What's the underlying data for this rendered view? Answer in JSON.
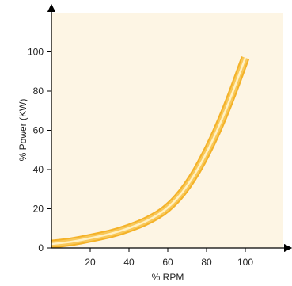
{
  "chart_data": {
    "type": "line",
    "title": "",
    "xlabel": "% RPM",
    "ylabel": "% Power (KW)",
    "xlim": [
      0,
      120
    ],
    "ylim": [
      0,
      115
    ],
    "x_ticks": [
      "20",
      "40",
      "60",
      "80",
      "100"
    ],
    "y_ticks": [
      "0",
      "20",
      "40",
      "60",
      "80",
      "100"
    ],
    "grid": false,
    "series": [
      {
        "x": [
          0,
          10,
          20,
          30,
          40,
          50,
          60,
          70,
          80,
          90,
          100
        ],
        "y": [
          2,
          3,
          5,
          7,
          10,
          14,
          20,
          31,
          48,
          70,
          97
        ]
      }
    ],
    "colors": {
      "plot_background": "#fdf5e4",
      "curve_outer": "#f4b228",
      "curve_highlight": "#fff1c4",
      "axis": "#000000"
    }
  }
}
